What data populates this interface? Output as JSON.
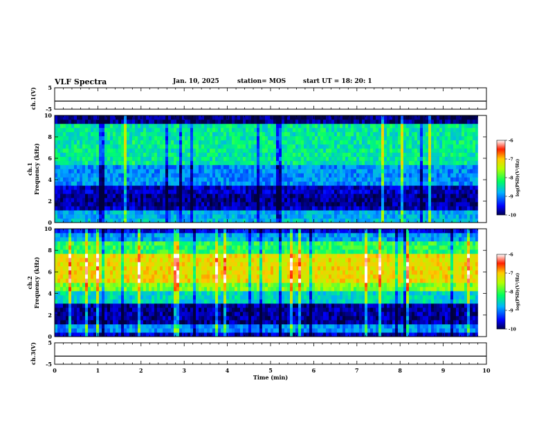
{
  "header": {
    "title": "VLF Spectra",
    "date": "Jan. 10, 2025",
    "station": "station= MOS",
    "start": "start  UT =   18: 20: 1"
  },
  "chart_data": [
    {
      "type": "line",
      "name": "ch1-voltage",
      "ylabel": "ch.1(V)",
      "ylim": [
        -5,
        5
      ],
      "y_ticks": [
        "5",
        "-5"
      ],
      "x": [
        0,
        10
      ],
      "values": [
        -1.2,
        -1.2
      ]
    },
    {
      "type": "heatmap",
      "name": "ch1-spectrogram",
      "ylabel": "ch.1\nFrequency (kHz)",
      "ylim": [
        0,
        10
      ],
      "y_ticks": [
        "0",
        "2",
        "4",
        "6",
        "8",
        "10"
      ],
      "xlim": [
        0,
        9.8
      ],
      "colorbar": {
        "label": "log(PSD)(V²/Hz)",
        "range": [
          -10,
          -6
        ],
        "ticks": [
          "-6",
          "-7",
          "-8",
          "-9",
          "-10"
        ]
      }
    },
    {
      "type": "heatmap",
      "name": "ch2-spectrogram",
      "ylabel": "ch.2\nFrequency (kHz)",
      "ylim": [
        0,
        10
      ],
      "y_ticks": [
        "0",
        "2",
        "4",
        "6",
        "8",
        "10"
      ],
      "xlim": [
        0,
        9.8
      ],
      "colorbar": {
        "label": "log(PSD)(V²/Hz)",
        "range": [
          -10,
          -6
        ],
        "ticks": [
          "-6",
          "-7",
          "-8",
          "-9",
          "-10"
        ]
      }
    },
    {
      "type": "line",
      "name": "ch3-voltage",
      "ylabel": "ch.3(V)",
      "ylim": [
        -5,
        5
      ],
      "y_ticks": [
        "5",
        "-5"
      ],
      "x": [
        0,
        10
      ],
      "values": [
        -1.2,
        -1.2
      ]
    }
  ],
  "x_axis": {
    "label": "Time (min)",
    "range": [
      0,
      10
    ],
    "ticks": [
      "0",
      "1",
      "2",
      "3",
      "4",
      "5",
      "6",
      "7",
      "8",
      "9",
      "10"
    ]
  }
}
